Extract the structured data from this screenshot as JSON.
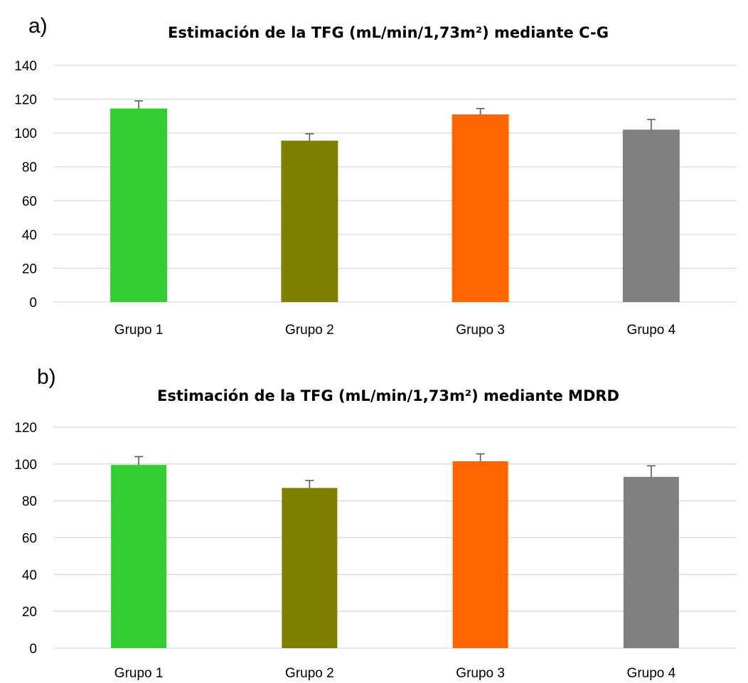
{
  "figure": {
    "panel_labels": [
      "a)",
      "b)"
    ]
  },
  "chart_data": [
    {
      "type": "bar",
      "title": "Estimación de la TFG (mL/min/1,73m²) mediante C-G",
      "xlabel": "",
      "ylabel": "",
      "categories": [
        "Grupo 1",
        "Grupo 2",
        "Grupo 3",
        "Grupo 4"
      ],
      "values": [
        114.5,
        95.5,
        111,
        102
      ],
      "error_upper": [
        4.5,
        4,
        3.5,
        6
      ],
      "colors": [
        "#33cc33",
        "#808000",
        "#ff6600",
        "#808080"
      ],
      "ylim": [
        0,
        140
      ],
      "yticks": [
        0,
        20,
        40,
        60,
        80,
        100,
        120,
        140
      ],
      "grid": true,
      "legend": "none"
    },
    {
      "type": "bar",
      "title": "Estimación de la TFG (mL/min/1,73m²) mediante MDRD",
      "xlabel": "",
      "ylabel": "",
      "categories": [
        "Grupo 1",
        "Grupo 2",
        "Grupo 3",
        "Grupo 4"
      ],
      "values": [
        99.5,
        87,
        101.5,
        93
      ],
      "error_upper": [
        4.5,
        4,
        4,
        6
      ],
      "colors": [
        "#33cc33",
        "#808000",
        "#ff6600",
        "#808080"
      ],
      "ylim": [
        0,
        120
      ],
      "yticks": [
        0,
        20,
        40,
        60,
        80,
        100,
        120
      ],
      "grid": true,
      "legend": "none"
    }
  ]
}
